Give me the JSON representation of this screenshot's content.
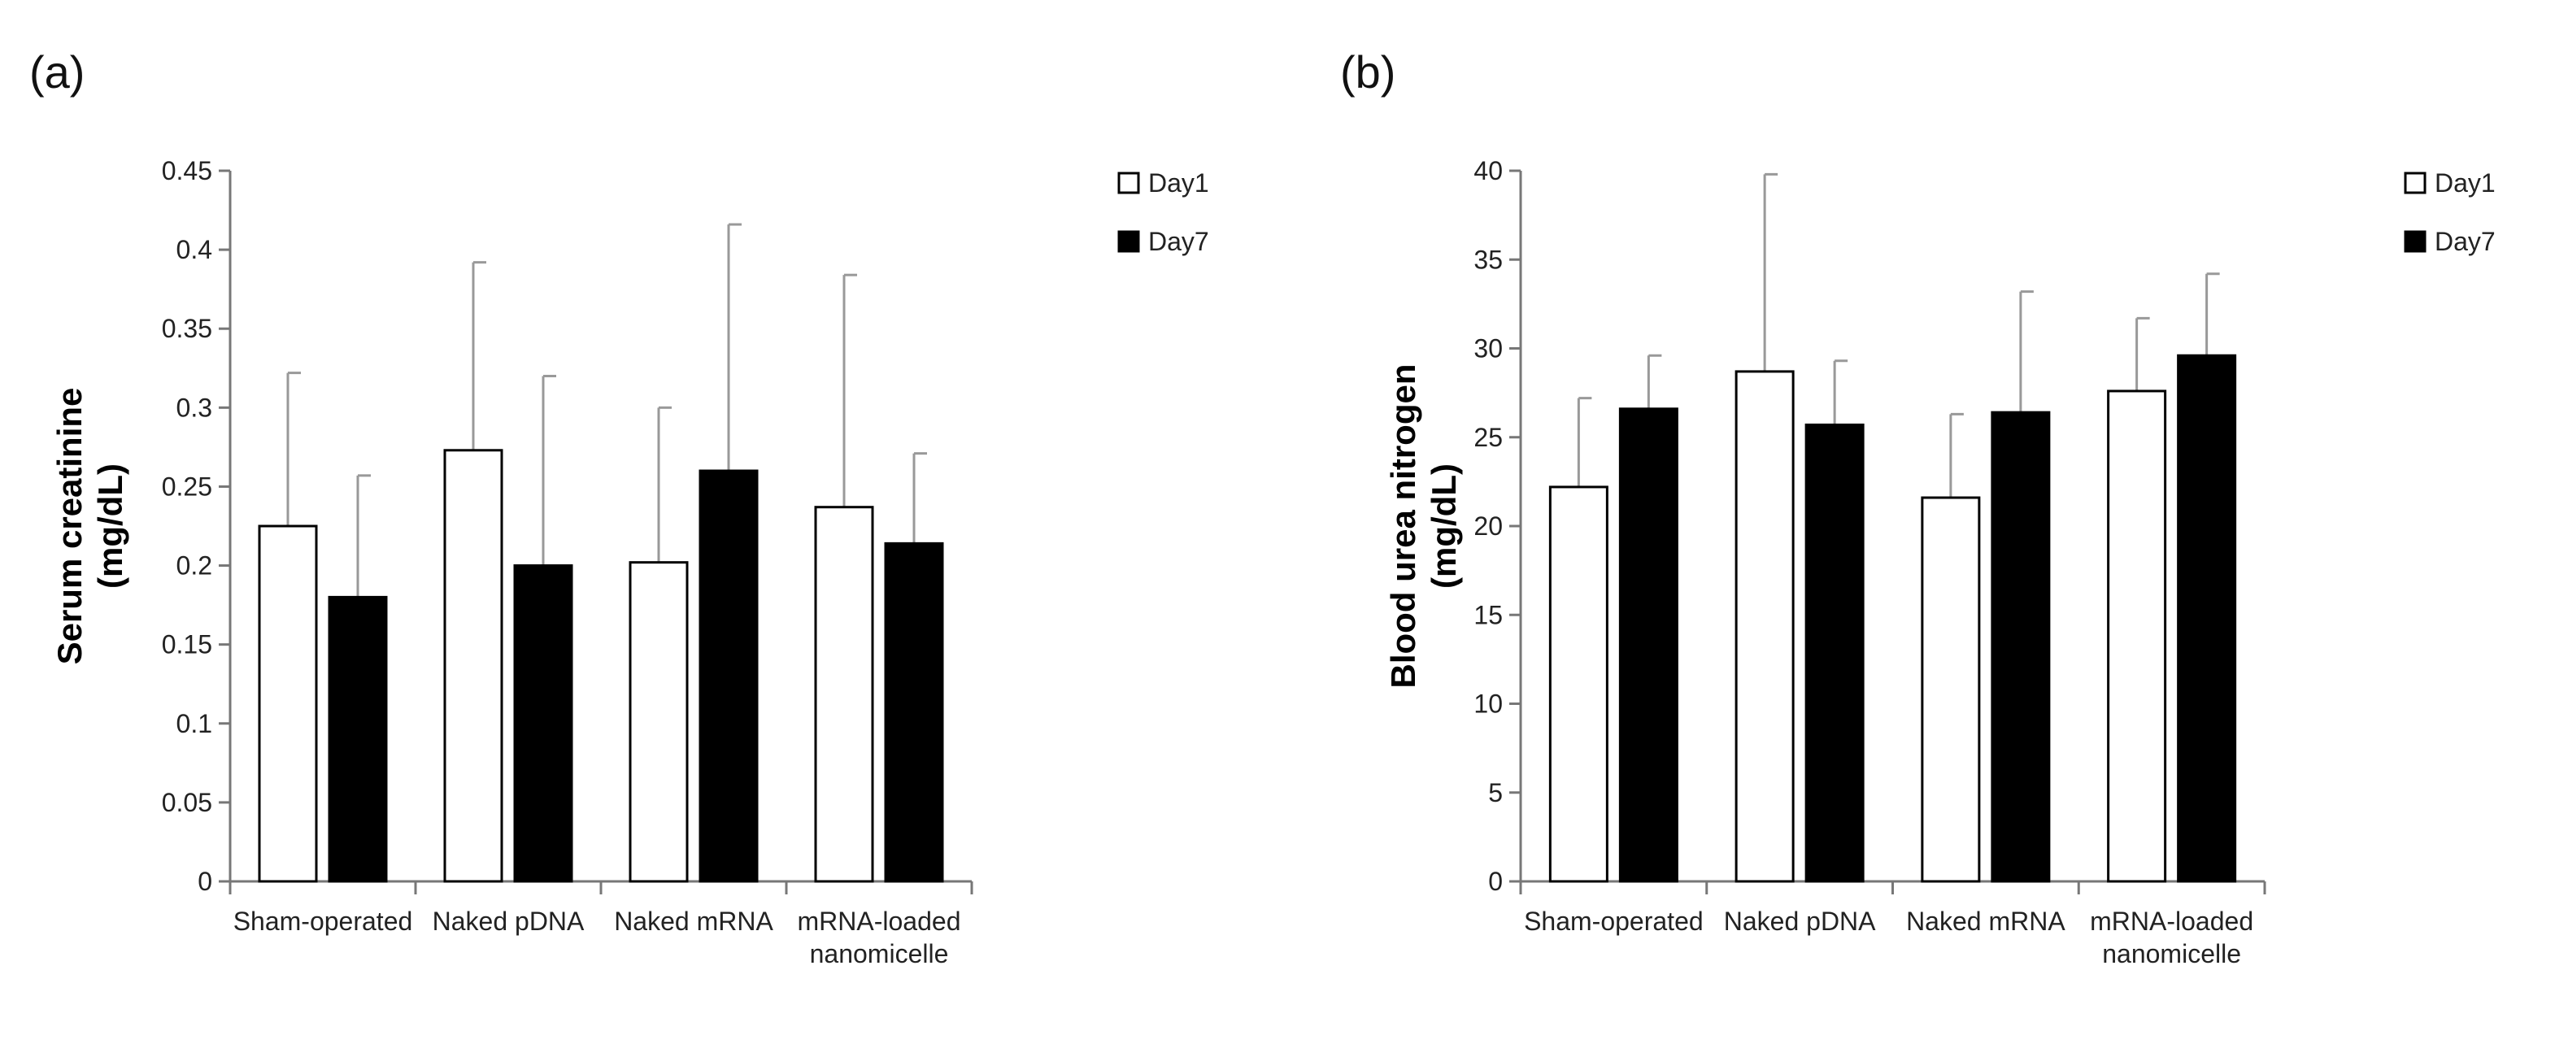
{
  "colors": {
    "day1_fill": "#ffffff",
    "day7_fill": "#000000",
    "bar_stroke": "#000000",
    "axis": "#777777",
    "error_bar": "#999999"
  },
  "chart_data": [
    {
      "panel": "(a)",
      "type": "bar",
      "ylabel_line1": "Serum creatinine",
      "ylabel_line2": "(mg/dL)",
      "ylim": [
        0,
        0.45
      ],
      "ytick_step": 0.05,
      "yticks": [
        "0",
        "0.05",
        "0.1",
        "0.15",
        "0.2",
        "0.25",
        "0.3",
        "0.35",
        "0.4",
        "0.45"
      ],
      "categories": [
        [
          "Sham-operated"
        ],
        [
          "Naked pDNA"
        ],
        [
          "Naked mRNA"
        ],
        [
          "mRNA-loaded",
          "nanomicelle"
        ]
      ],
      "series": [
        {
          "name": "Day1",
          "values": [
            0.225,
            0.273,
            0.202,
            0.237
          ],
          "errors": [
            0.097,
            0.119,
            0.098,
            0.147
          ]
        },
        {
          "name": "Day7",
          "values": [
            0.18,
            0.2,
            0.26,
            0.214
          ],
          "errors": [
            0.077,
            0.12,
            0.156,
            0.057
          ]
        }
      ],
      "legend": [
        "Day1",
        "Day7"
      ],
      "legend_position": "top-right"
    },
    {
      "panel": "(b)",
      "type": "bar",
      "ylabel_line1": "Blood urea nitrogen",
      "ylabel_line2": "(mg/dL)",
      "ylim": [
        0,
        40
      ],
      "ytick_step": 5,
      "yticks": [
        "0",
        "5",
        "10",
        "15",
        "20",
        "25",
        "30",
        "35",
        "40"
      ],
      "categories": [
        [
          "Sham-operated"
        ],
        [
          "Naked pDNA"
        ],
        [
          "Naked mRNA"
        ],
        [
          "mRNA-loaded",
          "nanomicelle"
        ]
      ],
      "series": [
        {
          "name": "Day1",
          "values": [
            22.2,
            28.7,
            21.6,
            27.6
          ],
          "errors": [
            5.0,
            11.1,
            4.7,
            4.1
          ]
        },
        {
          "name": "Day7",
          "values": [
            26.6,
            25.7,
            26.4,
            29.6
          ],
          "errors": [
            3.0,
            3.6,
            6.8,
            4.6
          ]
        }
      ],
      "legend": [
        "Day1",
        "Day7"
      ],
      "legend_position": "top-right"
    }
  ]
}
